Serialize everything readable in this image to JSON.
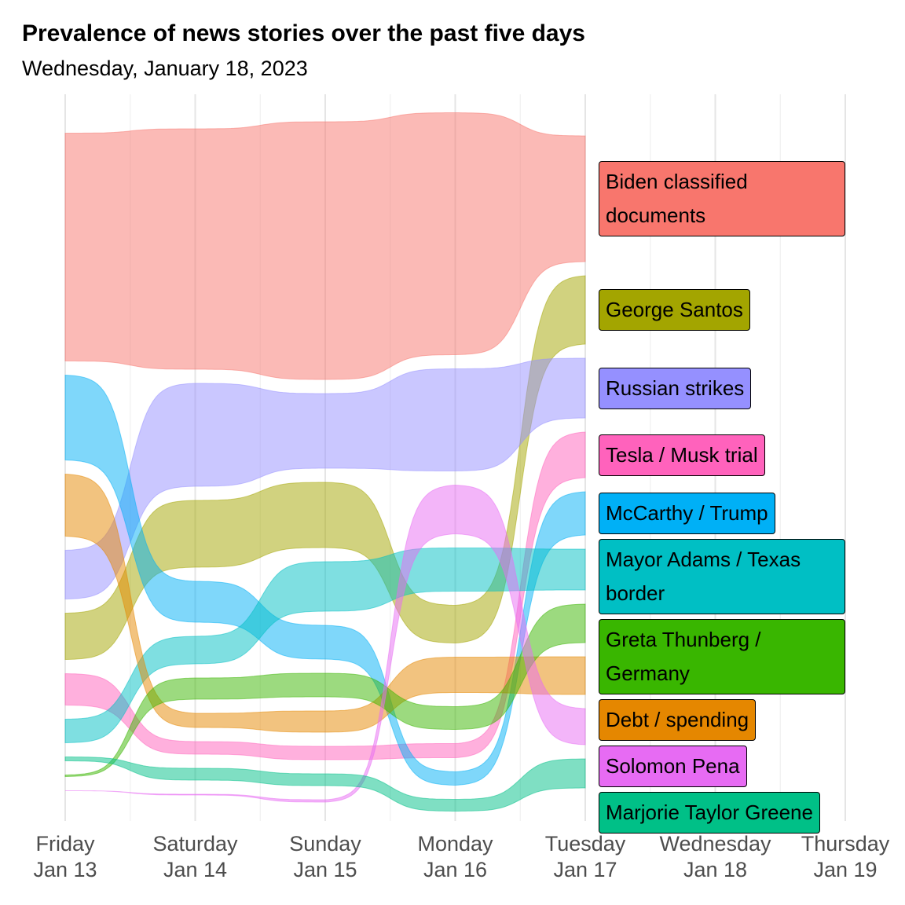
{
  "chart_data": {
    "type": "bump-stream",
    "title": "Prevalence of news stories over the past five days",
    "subtitle": "Wednesday, January 18, 2023",
    "categories": [
      [
        "Friday",
        "Jan 13"
      ],
      [
        "Saturday",
        "Jan 14"
      ],
      [
        "Sunday",
        "Jan 15"
      ],
      [
        "Monday",
        "Jan 16"
      ],
      [
        "Tuesday",
        "Jan 17"
      ],
      [
        "Wednesday",
        "Jan 18"
      ],
      [
        "Thursday",
        "Jan 19"
      ]
    ],
    "grid": true,
    "series": [
      {
        "name": "Biden classified documents",
        "color": "#F8766D",
        "values": [
          290,
          306,
          328,
          308,
          160,
          null,
          null
        ]
      },
      {
        "name": "George Santos",
        "color": "#A3A500",
        "values": [
          59,
          85,
          83,
          48,
          87,
          null,
          null
        ]
      },
      {
        "name": "Russian strikes",
        "color": "#9590FF",
        "values": [
          62,
          131,
          95,
          130,
          76,
          null,
          null
        ]
      },
      {
        "name": "Tesla / Musk trial",
        "color": "#FF62BC",
        "values": [
          40,
          16,
          17,
          18,
          58,
          null,
          null
        ]
      },
      {
        "name": "McCarthy / Trump",
        "color": "#00B0F6",
        "values": [
          108,
          52,
          43,
          17,
          55,
          null,
          null
        ]
      },
      {
        "name": "Mayor Adams / Texas border",
        "color": "#00BFC4",
        "values": [
          30,
          35,
          63,
          55,
          52,
          null,
          null
        ]
      },
      {
        "name": "Debt / spending",
        "color": "#E58700",
        "values": [
          79,
          18,
          27,
          45,
          48,
          null,
          null
        ]
      },
      {
        "name": "Greta Thunberg / Germany",
        "color": "#39B600",
        "values": [
          2,
          27,
          30,
          29,
          49,
          null,
          null
        ]
      },
      {
        "name": "Solomon Pena",
        "color": "#E76BF3",
        "values": [
          0,
          1,
          3,
          62,
          46,
          null,
          null
        ]
      },
      {
        "name": "Marjorie Taylor Greene",
        "color": "#00C087",
        "values": [
          5,
          15,
          15,
          15,
          37,
          null,
          null
        ]
      }
    ]
  }
}
